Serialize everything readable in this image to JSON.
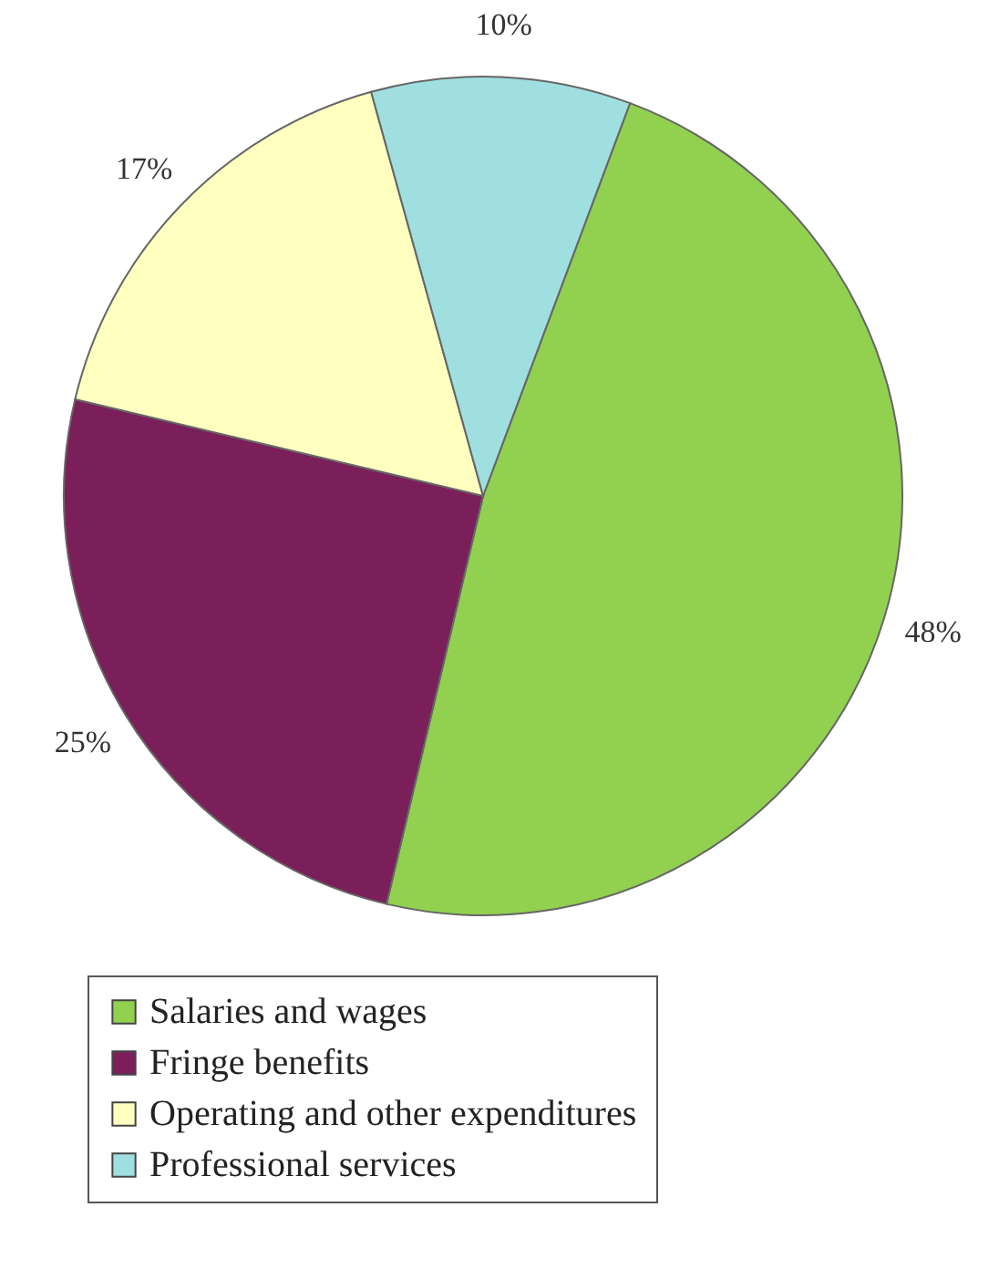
{
  "chart_data": {
    "type": "pie",
    "categories": [
      "Salaries and wages",
      "Fringe benefits",
      "Operating and other expenditures",
      "Professional services"
    ],
    "values": [
      48,
      25,
      17,
      10
    ],
    "value_labels": [
      "48%",
      "25%",
      "17%",
      "10%"
    ],
    "colors": [
      "#92d050",
      "#7b1f5a",
      "#ffffc0",
      "#a0dfe0"
    ],
    "legend": "bottom"
  }
}
